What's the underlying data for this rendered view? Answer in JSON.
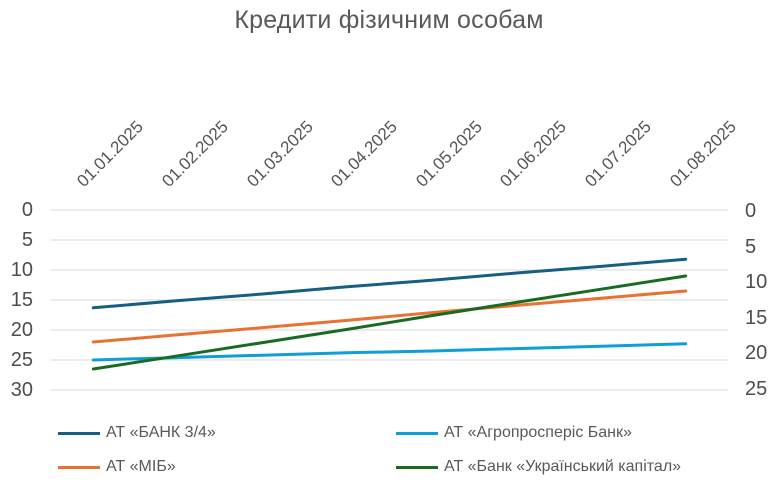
{
  "title": "Кредити фізичним особам",
  "colors": {
    "background": "#FFFFFF",
    "title_text": "#595959",
    "axis_text": "#4D4D4D",
    "gridline": "#D9D9D9"
  },
  "chart_data": {
    "type": "line",
    "title": "Кредити фізичним особам",
    "categories": [
      "01.01.2025",
      "01.02.2025",
      "01.03.2025",
      "01.04.2025",
      "01.05.2025",
      "01.06.2025",
      "01.07.2025",
      "01.08.2025"
    ],
    "series": [
      {
        "name": "АТ «БАНК 3/4»",
        "color": "#156082",
        "values": [
          16.3,
          15.1,
          14.0,
          12.8,
          11.7,
          10.5,
          9.4,
          8.2
        ]
      },
      {
        "name": "АТ «МІБ»",
        "color": "#E97132",
        "values": [
          22.0,
          20.8,
          19.6,
          18.4,
          17.1,
          15.9,
          14.7,
          13.5
        ]
      },
      {
        "name": "АТ «Агропросперіс Банк»",
        "color": "#0F9ED5",
        "values": [
          25.0,
          24.6,
          24.2,
          23.8,
          23.5,
          23.1,
          22.7,
          22.3
        ]
      },
      {
        "name": "АТ «Банк «Український капітал»",
        "color": "#196B24",
        "values": [
          26.5,
          24.3,
          22.1,
          19.9,
          17.6,
          15.4,
          13.2,
          11.0
        ]
      }
    ],
    "y_axis_left": {
      "tick_labels": [
        0,
        5,
        10,
        15,
        20,
        25,
        30
      ],
      "min": 0,
      "max": 30,
      "inverted": true
    },
    "y_axis_right": {
      "tick_labels": [
        0,
        5,
        10,
        15,
        20,
        25
      ],
      "min": 0,
      "max": 25,
      "inverted": true
    },
    "x_axis": {
      "labels_position": "top",
      "labels_rotation_deg": 45
    },
    "grid": "horizontal",
    "legend_position": "bottom-two-columns",
    "line_width": 3
  }
}
